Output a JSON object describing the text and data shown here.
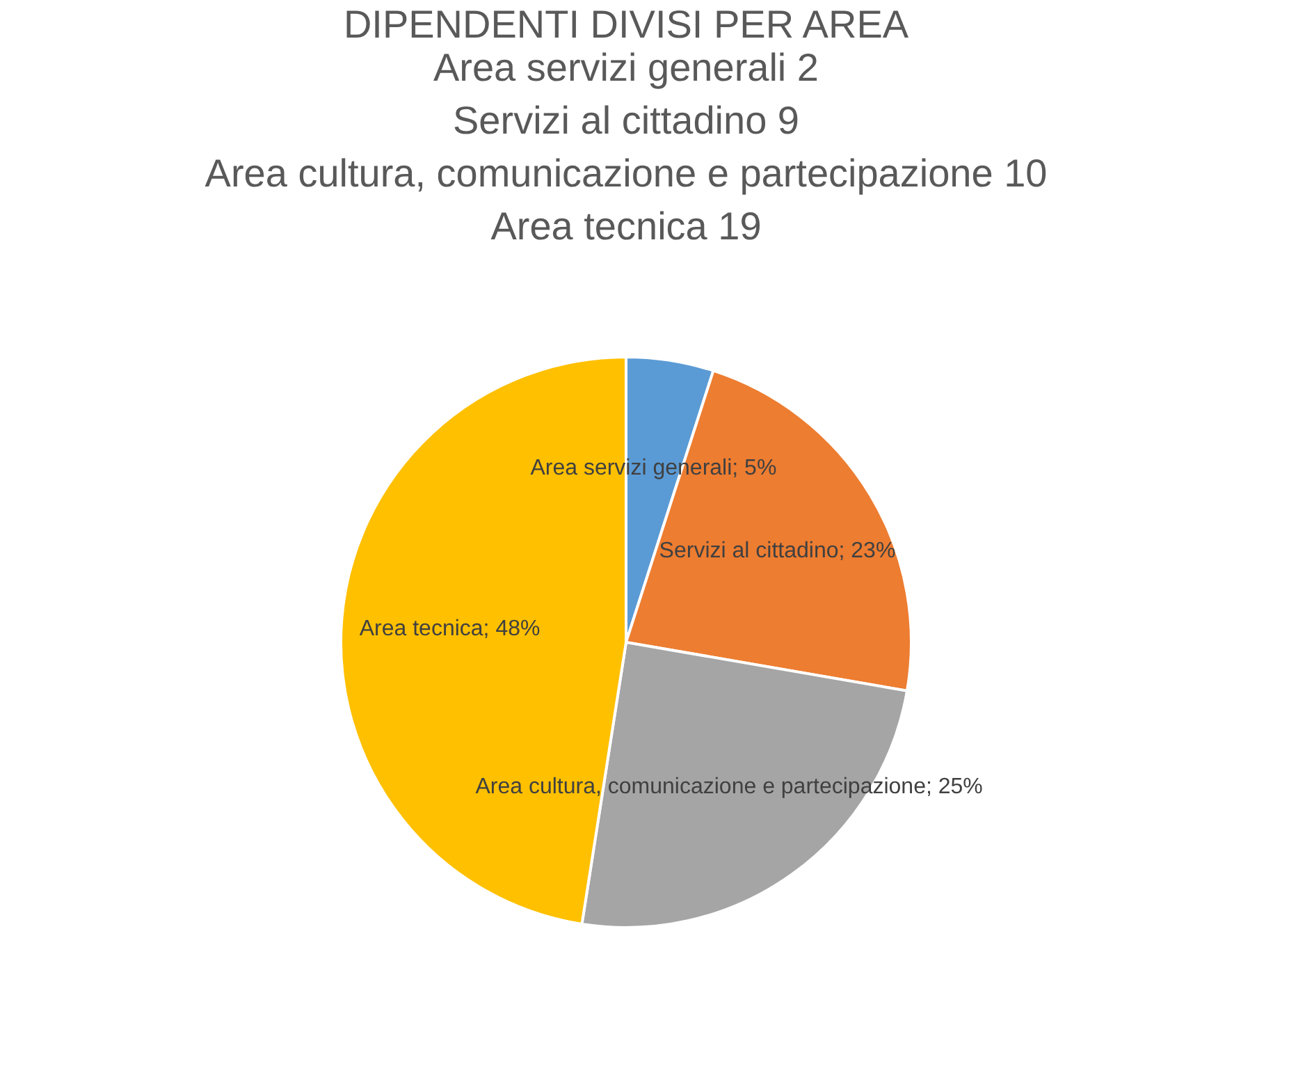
{
  "chart_data": {
    "type": "pie",
    "title": "DIPENDENTI DIVISI PER AREA",
    "annotations": [
      "Area servizi generali 2",
      "Servizi al cittadino 9",
      "Area cultura, comunicazione e partecipazione 10",
      "Area tecnica 19"
    ],
    "categories": [
      "Area servizi generali",
      "Servizi al cittadino",
      "Area cultura, comunicazione e partecipazione",
      "Area tecnica"
    ],
    "values": [
      5,
      23,
      25,
      48
    ],
    "value_labels": [
      "5%",
      "23%",
      "25%",
      "48%"
    ],
    "colors": [
      "#5b9bd5",
      "#ed7d31",
      "#a5a5a5",
      "#ffc000"
    ],
    "legend": false
  }
}
